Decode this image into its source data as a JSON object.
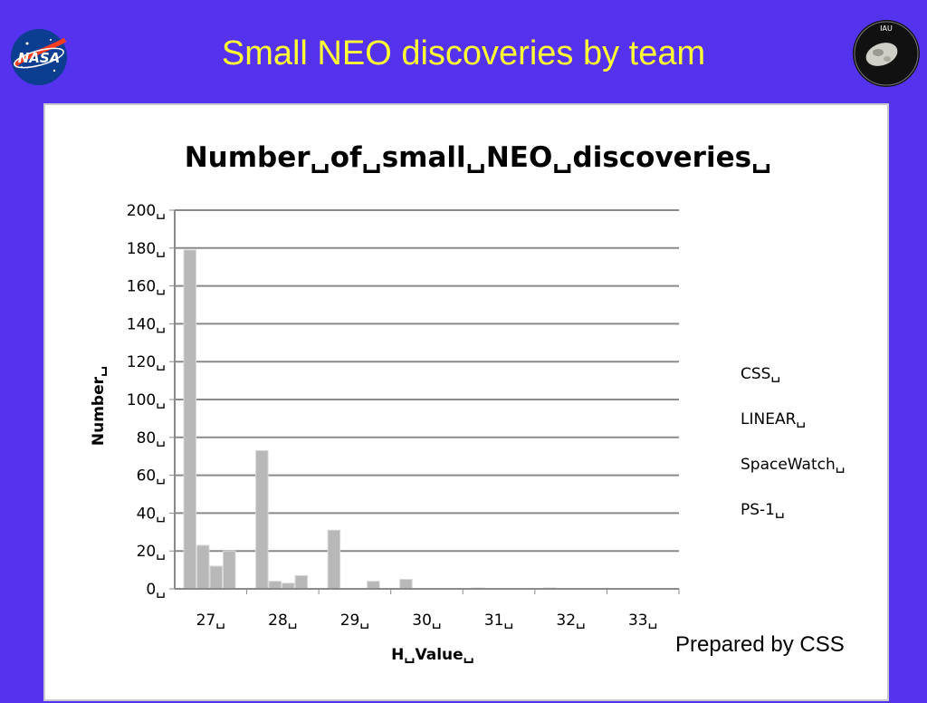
{
  "slide": {
    "title": "Small NEO discoveries by team",
    "footer": "Prepared by CSS",
    "colors": {
      "background": "#5533ee",
      "title": "#ffff33",
      "bar": "#b8b8b8"
    },
    "logos": [
      "nasa-logo",
      "iau-minor-planet-center-logo"
    ]
  },
  "chart_data": {
    "type": "bar",
    "title": "Number␣of␣small␣NEO␣discoveries␣",
    "xlabel": "H␣Value␣",
    "ylabel": "Number␣",
    "ylim": [
      0,
      200
    ],
    "y_ticks": [
      "0␣",
      "20␣",
      "40␣",
      "60␣",
      "80␣",
      "100␣",
      "120␣",
      "140␣",
      "160␣",
      "180␣",
      "200␣"
    ],
    "categories": [
      "27␣",
      "28␣",
      "29␣",
      "30␣",
      "31␣",
      "32␣",
      "33␣"
    ],
    "series": [
      {
        "name": "CSS␣",
        "values": [
          179,
          73,
          31,
          5,
          0.5,
          0.5,
          0
        ]
      },
      {
        "name": "LINEAR␣",
        "values": [
          23,
          4,
          0,
          0,
          0,
          0,
          0
        ]
      },
      {
        "name": "SpaceWatch␣",
        "values": [
          12,
          3,
          0,
          0,
          0,
          0,
          0
        ]
      },
      {
        "name": "PS-1␣",
        "values": [
          20,
          7,
          4,
          0,
          0,
          0,
          0
        ]
      }
    ],
    "grid": true,
    "legend_position": "right",
    "bar_color": "#b8b8b8"
  }
}
